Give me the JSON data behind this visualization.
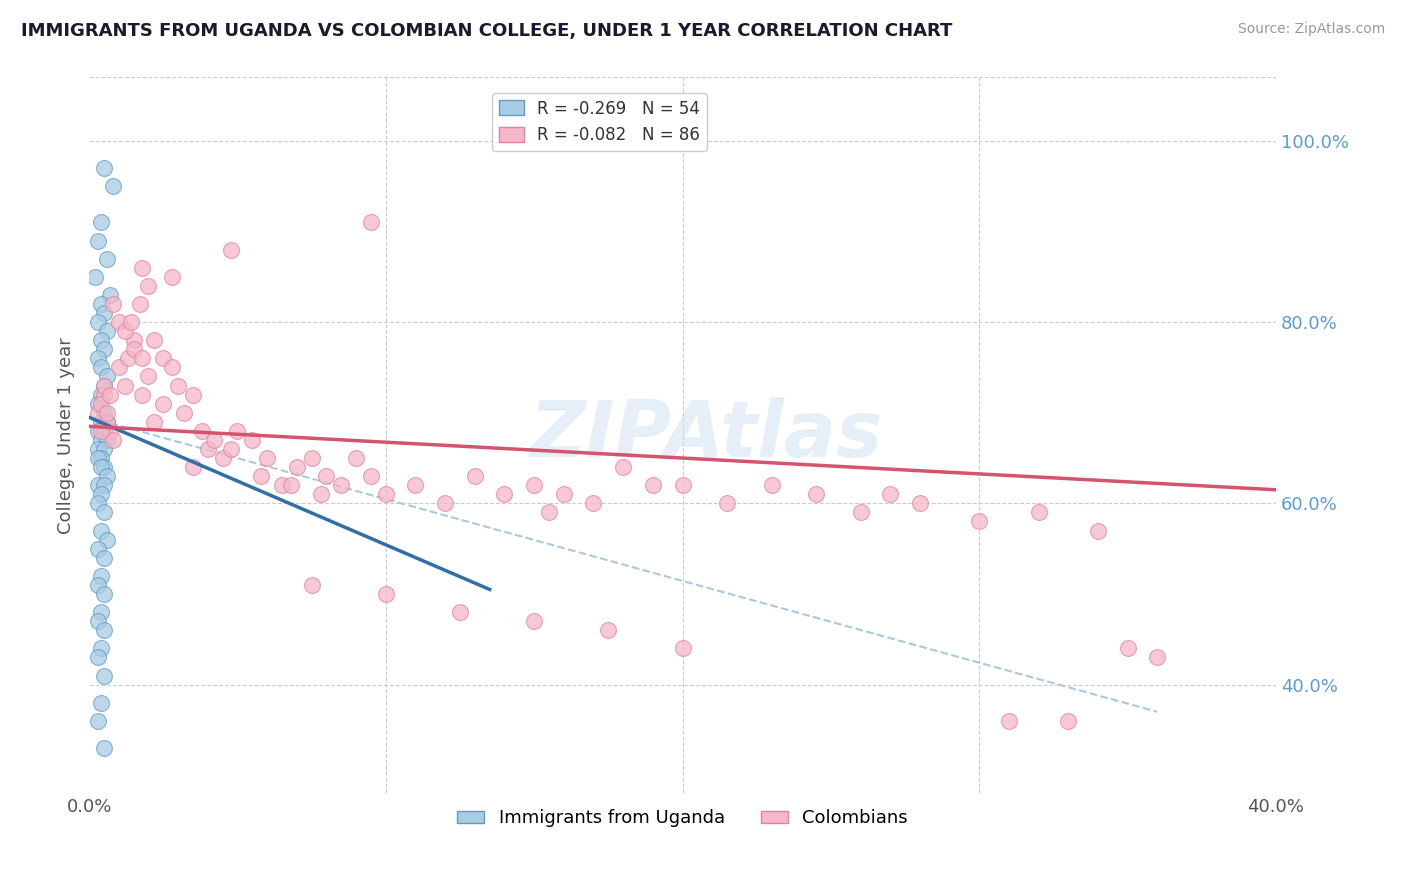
{
  "title": "IMMIGRANTS FROM UGANDA VS COLOMBIAN COLLEGE, UNDER 1 YEAR CORRELATION CHART",
  "source": "Source: ZipAtlas.com",
  "ylabel": "College, Under 1 year",
  "y_ticks_right": [
    0.4,
    0.6,
    0.8,
    1.0
  ],
  "y_tick_labels_right": [
    "40.0%",
    "60.0%",
    "80.0%",
    "100.0%"
  ],
  "xlim": [
    0.0,
    0.4
  ],
  "ylim": [
    0.28,
    1.07
  ],
  "blue_color": "#a8cce4",
  "blue_edge": "#5b9ec9",
  "pink_color": "#f4b8c8",
  "pink_edge": "#e87fa0",
  "blue_line_color": "#2f6faa",
  "pink_line_color": "#d4546e",
  "dashed_line_color": "#aac8e0",
  "legend_R_blue": "R = -0.269",
  "legend_N_blue": "N = 54",
  "legend_R_pink": "R = -0.082",
  "legend_N_pink": "N = 86",
  "legend_label_blue": "Immigrants from Uganda",
  "legend_label_pink": "Colombians",
  "watermark": "ZIPAtlas",
  "blue_scatter_x": [
    0.005,
    0.008,
    0.004,
    0.003,
    0.006,
    0.002,
    0.007,
    0.004,
    0.005,
    0.003,
    0.006,
    0.004,
    0.005,
    0.003,
    0.004,
    0.006,
    0.005,
    0.004,
    0.003,
    0.005,
    0.006,
    0.004,
    0.003,
    0.005,
    0.004,
    0.006,
    0.003,
    0.005,
    0.004,
    0.003,
    0.005,
    0.004,
    0.006,
    0.003,
    0.005,
    0.004,
    0.003,
    0.005,
    0.004,
    0.006,
    0.003,
    0.005,
    0.004,
    0.003,
    0.005,
    0.004,
    0.003,
    0.005,
    0.004,
    0.003,
    0.005,
    0.004,
    0.003,
    0.005
  ],
  "blue_scatter_y": [
    0.97,
    0.95,
    0.91,
    0.89,
    0.87,
    0.85,
    0.83,
    0.82,
    0.81,
    0.8,
    0.79,
    0.78,
    0.77,
    0.76,
    0.75,
    0.74,
    0.73,
    0.72,
    0.71,
    0.7,
    0.69,
    0.69,
    0.68,
    0.68,
    0.67,
    0.67,
    0.66,
    0.66,
    0.65,
    0.65,
    0.64,
    0.64,
    0.63,
    0.62,
    0.62,
    0.61,
    0.6,
    0.59,
    0.57,
    0.56,
    0.55,
    0.54,
    0.52,
    0.51,
    0.5,
    0.48,
    0.47,
    0.46,
    0.44,
    0.43,
    0.41,
    0.38,
    0.36,
    0.33
  ],
  "pink_scatter_x": [
    0.003,
    0.005,
    0.007,
    0.004,
    0.006,
    0.008,
    0.005,
    0.004,
    0.006,
    0.007,
    0.01,
    0.012,
    0.015,
    0.013,
    0.01,
    0.008,
    0.012,
    0.015,
    0.018,
    0.02,
    0.017,
    0.014,
    0.022,
    0.025,
    0.02,
    0.018,
    0.028,
    0.03,
    0.025,
    0.022,
    0.035,
    0.032,
    0.038,
    0.04,
    0.035,
    0.042,
    0.045,
    0.05,
    0.048,
    0.055,
    0.06,
    0.058,
    0.065,
    0.07,
    0.068,
    0.075,
    0.08,
    0.078,
    0.085,
    0.09,
    0.095,
    0.1,
    0.11,
    0.12,
    0.13,
    0.14,
    0.15,
    0.16,
    0.17,
    0.18,
    0.19,
    0.2,
    0.215,
    0.23,
    0.245,
    0.26,
    0.28,
    0.3,
    0.32,
    0.34,
    0.27,
    0.155,
    0.095,
    0.048,
    0.028,
    0.018,
    0.35,
    0.36,
    0.33,
    0.31,
    0.2,
    0.175,
    0.15,
    0.125,
    0.1,
    0.075
  ],
  "pink_scatter_y": [
    0.7,
    0.72,
    0.68,
    0.71,
    0.69,
    0.67,
    0.73,
    0.68,
    0.7,
    0.72,
    0.75,
    0.73,
    0.78,
    0.76,
    0.8,
    0.82,
    0.79,
    0.77,
    0.76,
    0.84,
    0.82,
    0.8,
    0.78,
    0.76,
    0.74,
    0.72,
    0.75,
    0.73,
    0.71,
    0.69,
    0.72,
    0.7,
    0.68,
    0.66,
    0.64,
    0.67,
    0.65,
    0.68,
    0.66,
    0.67,
    0.65,
    0.63,
    0.62,
    0.64,
    0.62,
    0.65,
    0.63,
    0.61,
    0.62,
    0.65,
    0.63,
    0.61,
    0.62,
    0.6,
    0.63,
    0.61,
    0.62,
    0.61,
    0.6,
    0.64,
    0.62,
    0.62,
    0.6,
    0.62,
    0.61,
    0.59,
    0.6,
    0.58,
    0.59,
    0.57,
    0.61,
    0.59,
    0.91,
    0.88,
    0.85,
    0.86,
    0.44,
    0.43,
    0.36,
    0.36,
    0.44,
    0.46,
    0.47,
    0.48,
    0.5,
    0.51
  ],
  "blue_line_x": [
    0.0,
    0.135
  ],
  "blue_line_y": [
    0.695,
    0.505
  ],
  "pink_line_x": [
    0.0,
    0.4
  ],
  "pink_line_y": [
    0.685,
    0.615
  ],
  "dashed_line_x": [
    0.0,
    0.36
  ],
  "dashed_line_y": [
    0.695,
    0.37
  ]
}
